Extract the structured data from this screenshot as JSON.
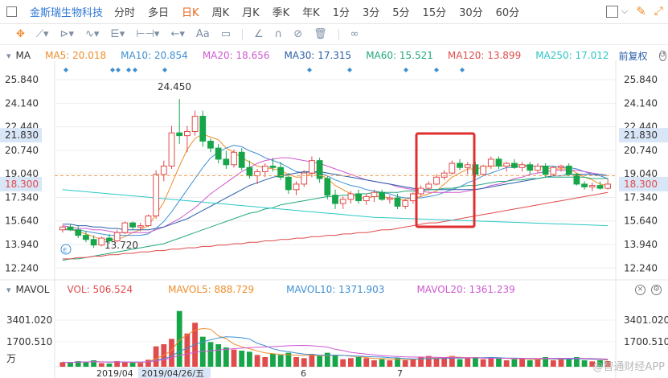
{
  "header": {
    "stock_name": "金斯瑞生物科技",
    "periods": [
      "分时",
      "多日",
      "日K",
      "周K",
      "月K",
      "季K",
      "年K",
      "1分",
      "3分",
      "5分",
      "15分",
      "30分",
      "60分"
    ],
    "active_period": "日K"
  },
  "toolbar": {
    "tools": [
      "crosshair-icon",
      "trendline-icon",
      "channel-icon",
      "wave-icon",
      "fibonacci-icon",
      "range-icon",
      "arrow-icon",
      "text-tool-label",
      "note-icon",
      "pen-icon",
      "arc-icon",
      "forbid-icon",
      "trash-icon",
      "link-icon"
    ],
    "text_tool_label": "Aa"
  },
  "ma_legend": {
    "name": "MA",
    "items": [
      {
        "label": "MA5: 20.018",
        "color": "#f08c2b"
      },
      {
        "label": "MA10: 20.854",
        "color": "#3f8fd2"
      },
      {
        "label": "MA20: 18.656",
        "color": "#cf59d1"
      },
      {
        "label": "MA30: 17.315",
        "color": "#2a5fa8"
      },
      {
        "label": "MA60: 15.521",
        "color": "#23a87b"
      },
      {
        "label": "MA120: 13.899",
        "color": "#e04b4b"
      },
      {
        "label": "MA250: 17.012",
        "color": "#2cc7c7"
      }
    ],
    "adjust_label": "前复权"
  },
  "vol_legend": {
    "name": "MAVOL",
    "items": [
      {
        "label": "VOL: 506.524",
        "color": "#e04b4b"
      },
      {
        "label": "MAVOL5: 888.729",
        "color": "#f08c2b"
      },
      {
        "label": "MAVOL10: 1371.903",
        "color": "#3f8fd2"
      },
      {
        "label": "MAVOL20: 1361.239",
        "color": "#cf59d1"
      }
    ]
  },
  "price_axis": [
    "25.840",
    "24.140",
    "22.440",
    "21.830",
    "20.740",
    "19.040",
    "18.300",
    "17.340",
    "15.640",
    "13.940",
    "12.240"
  ],
  "vol_axis": [
    "3401.020",
    "1700.510",
    "万"
  ],
  "date_axis": [
    "2019/04",
    "2019/04/26/五",
    "6",
    "7"
  ],
  "annotations": {
    "high_label": "24.450",
    "low_label": "13.720"
  },
  "current_price": "18.300",
  "highlight_price": "21.830",
  "watermark": "@智通财经APP",
  "chart_data": {
    "type": "candlestick",
    "ylim": [
      11.5,
      26.6
    ],
    "candles": [
      [
        15.0,
        15.3,
        14.8,
        15.2
      ],
      [
        15.2,
        15.4,
        14.9,
        15.0
      ],
      [
        15.0,
        15.3,
        14.4,
        14.6
      ],
      [
        14.6,
        14.9,
        14.1,
        14.3
      ],
      [
        14.3,
        14.6,
        13.7,
        13.9
      ],
      [
        13.9,
        14.5,
        13.8,
        14.4
      ],
      [
        14.4,
        14.7,
        14.0,
        14.2
      ],
      [
        14.2,
        15.0,
        14.1,
        14.8
      ],
      [
        14.8,
        15.6,
        14.7,
        15.5
      ],
      [
        15.5,
        15.6,
        15.0,
        15.2
      ],
      [
        15.2,
        15.5,
        14.9,
        15.3
      ],
      [
        15.3,
        16.1,
        15.2,
        16.0
      ],
      [
        16.0,
        19.3,
        15.8,
        19.0
      ],
      [
        19.0,
        20.0,
        18.5,
        19.6
      ],
      [
        19.6,
        22.5,
        19.4,
        22.0
      ],
      [
        22.0,
        24.45,
        21.2,
        21.8
      ],
      [
        21.8,
        22.5,
        20.6,
        22.1
      ],
      [
        22.1,
        23.6,
        21.8,
        23.2
      ],
      [
        23.2,
        23.6,
        21.0,
        21.4
      ],
      [
        21.4,
        21.6,
        20.6,
        20.9
      ],
      [
        20.9,
        21.2,
        19.8,
        20.1
      ],
      [
        20.1,
        20.7,
        19.4,
        19.7
      ],
      [
        19.7,
        20.8,
        19.5,
        20.6
      ],
      [
        20.6,
        20.9,
        19.3,
        19.5
      ],
      [
        19.5,
        20.0,
        18.7,
        18.9
      ],
      [
        18.9,
        19.4,
        18.3,
        19.2
      ],
      [
        19.2,
        19.8,
        18.8,
        19.6
      ],
      [
        19.6,
        20.2,
        19.2,
        19.5
      ],
      [
        19.5,
        19.9,
        18.6,
        18.8
      ],
      [
        18.8,
        19.1,
        17.6,
        17.9
      ],
      [
        17.9,
        18.5,
        17.5,
        18.3
      ],
      [
        18.3,
        19.3,
        18.1,
        19.1
      ],
      [
        19.1,
        20.3,
        18.8,
        20.0
      ],
      [
        20.0,
        20.2,
        18.4,
        18.7
      ],
      [
        18.7,
        18.9,
        17.2,
        17.5
      ],
      [
        17.5,
        17.9,
        16.5,
        16.9
      ],
      [
        16.9,
        17.4,
        16.5,
        17.2
      ],
      [
        17.2,
        17.8,
        16.9,
        17.6
      ],
      [
        17.6,
        17.9,
        16.9,
        17.1
      ],
      [
        17.1,
        17.6,
        16.8,
        17.4
      ],
      [
        17.4,
        17.9,
        17.0,
        17.7
      ],
      [
        17.7,
        17.9,
        17.1,
        17.2
      ],
      [
        17.2,
        17.5,
        16.9,
        17.3
      ],
      [
        17.3,
        17.6,
        16.5,
        16.7
      ],
      [
        16.7,
        17.2,
        16.5,
        17.1
      ],
      [
        17.1,
        17.7,
        16.9,
        17.6
      ],
      [
        17.6,
        18.2,
        17.4,
        18.0
      ],
      [
        18.0,
        18.5,
        17.8,
        18.3
      ],
      [
        18.3,
        19.0,
        18.2,
        18.8
      ],
      [
        18.8,
        19.3,
        18.6,
        19.1
      ],
      [
        19.1,
        20.0,
        19.0,
        19.8
      ],
      [
        19.8,
        20.1,
        19.3,
        19.5
      ],
      [
        19.5,
        19.9,
        19.0,
        19.7
      ],
      [
        19.7,
        19.9,
        18.8,
        19.0
      ],
      [
        19.0,
        19.7,
        18.9,
        19.6
      ],
      [
        19.6,
        20.3,
        19.4,
        20.1
      ],
      [
        20.1,
        20.3,
        19.4,
        19.6
      ],
      [
        19.6,
        19.9,
        19.2,
        19.8
      ],
      [
        19.8,
        20.1,
        19.4,
        19.5
      ],
      [
        19.5,
        19.9,
        19.2,
        19.7
      ],
      [
        19.7,
        19.9,
        19.0,
        19.3
      ],
      [
        19.3,
        19.8,
        19.1,
        19.6
      ],
      [
        19.6,
        19.8,
        18.8,
        19.0
      ],
      [
        19.0,
        19.6,
        18.9,
        19.5
      ],
      [
        19.5,
        19.7,
        19.2,
        19.6
      ],
      [
        19.6,
        19.8,
        18.9,
        19.0
      ],
      [
        19.0,
        19.1,
        18.2,
        18.3
      ],
      [
        18.3,
        18.5,
        17.9,
        18.1
      ],
      [
        18.1,
        18.4,
        17.8,
        18.2
      ],
      [
        18.2,
        18.5,
        17.9,
        18.0
      ],
      [
        18.0,
        18.7,
        17.9,
        18.3
      ]
    ],
    "ma_series": [
      {
        "name": "MA5",
        "color": "#f08c2b",
        "values": [
          15.1,
          15.0,
          14.9,
          14.7,
          14.5,
          14.3,
          14.3,
          14.3,
          14.5,
          14.8,
          15.0,
          15.3,
          16.1,
          17.0,
          18.3,
          19.6,
          20.8,
          21.6,
          21.9,
          21.7,
          21.5,
          20.9,
          20.6,
          20.2,
          19.9,
          19.6,
          19.5,
          19.4,
          19.3,
          19.0,
          18.8,
          18.8,
          19.1,
          19.0,
          18.7,
          18.2,
          17.9,
          17.6,
          17.3,
          17.3,
          17.4,
          17.4,
          17.3,
          17.2,
          17.2,
          17.3,
          17.4,
          17.6,
          17.8,
          18.3,
          18.8,
          19.1,
          19.4,
          19.4,
          19.5,
          19.6,
          19.6,
          19.6,
          19.7,
          19.7,
          19.6,
          19.6,
          19.5,
          19.4,
          19.4,
          19.4,
          19.1,
          18.8,
          18.6,
          18.3,
          18.2
        ]
      },
      {
        "name": "MA10",
        "color": "#3f8fd2",
        "values": [
          15.0,
          15.0,
          15.0,
          14.9,
          14.8,
          14.7,
          14.6,
          14.6,
          14.6,
          14.6,
          14.6,
          14.7,
          15.1,
          15.6,
          16.3,
          17.1,
          17.9,
          18.7,
          19.5,
          20.2,
          20.6,
          20.9,
          21.1,
          21.0,
          20.7,
          20.5,
          20.2,
          20.0,
          19.8,
          19.5,
          19.2,
          19.1,
          19.2,
          19.1,
          18.9,
          18.6,
          18.4,
          18.2,
          18.1,
          17.9,
          17.8,
          17.7,
          17.6,
          17.4,
          17.3,
          17.3,
          17.3,
          17.4,
          17.5,
          17.7,
          17.9,
          18.1,
          18.4,
          18.6,
          18.9,
          19.1,
          19.3,
          19.5,
          19.5,
          19.6,
          19.6,
          19.6,
          19.6,
          19.6,
          19.5,
          19.5,
          19.4,
          19.2,
          19.0,
          18.9,
          18.7
        ]
      },
      {
        "name": "MA20",
        "color": "#cf59d1",
        "values": [
          15.3,
          15.2,
          15.1,
          15.1,
          15.0,
          15.0,
          14.9,
          14.8,
          14.8,
          14.8,
          14.8,
          14.8,
          15.0,
          15.2,
          15.5,
          15.8,
          16.2,
          16.6,
          17.1,
          17.6,
          18.0,
          18.4,
          18.8,
          19.2,
          19.5,
          19.8,
          20.0,
          20.1,
          20.2,
          20.2,
          20.1,
          20.0,
          19.9,
          19.8,
          19.6,
          19.4,
          19.2,
          19.0,
          18.8,
          18.6,
          18.5,
          18.4,
          18.3,
          18.1,
          18.0,
          17.9,
          17.8,
          17.7,
          17.7,
          17.7,
          17.7,
          17.7,
          17.8,
          17.9,
          18.0,
          18.2,
          18.3,
          18.5,
          18.7,
          18.8,
          19.0,
          19.1,
          19.2,
          19.3,
          19.3,
          19.3,
          19.3,
          19.2,
          19.1,
          19.0,
          18.9
        ]
      },
      {
        "name": "MA30",
        "color": "#2a5fa8",
        "values": [
          15.4,
          15.4,
          15.3,
          15.3,
          15.2,
          15.2,
          15.1,
          15.1,
          15.0,
          15.0,
          15.0,
          15.0,
          15.1,
          15.2,
          15.4,
          15.6,
          15.8,
          16.1,
          16.4,
          16.7,
          17.0,
          17.3,
          17.6,
          17.9,
          18.2,
          18.4,
          18.6,
          18.8,
          18.9,
          19.0,
          19.1,
          19.2,
          19.2,
          19.2,
          19.1,
          19.0,
          18.9,
          18.8,
          18.7,
          18.6,
          18.5,
          18.4,
          18.3,
          18.2,
          18.1,
          18.0,
          17.9,
          17.9,
          17.9,
          17.9,
          17.9,
          17.9,
          17.9,
          17.9,
          18.0,
          18.1,
          18.2,
          18.3,
          18.4,
          18.5,
          18.6,
          18.7,
          18.8,
          18.9,
          18.9,
          19.0,
          19.0,
          19.0,
          19.0,
          19.0,
          18.9
        ]
      },
      {
        "name": "MA60",
        "color": "#23a87b",
        "values": [
          12.8,
          12.9,
          12.9,
          13.0,
          13.1,
          13.2,
          13.3,
          13.4,
          13.5,
          13.6,
          13.7,
          13.8,
          13.9,
          14.0,
          14.2,
          14.4,
          14.6,
          14.8,
          15.0,
          15.2,
          15.4,
          15.6,
          15.8,
          16.0,
          16.2,
          16.3,
          16.5,
          16.6,
          16.8,
          16.9,
          17.0,
          17.1,
          17.2,
          17.3,
          17.4,
          17.4,
          17.5,
          17.5,
          17.6,
          17.6,
          17.7,
          17.7,
          17.7,
          17.7,
          17.8,
          17.8,
          17.8,
          17.9,
          17.9,
          18.0,
          18.0,
          18.1,
          18.2,
          18.2,
          18.3,
          18.4,
          18.5,
          18.5,
          18.6,
          18.6,
          18.7,
          18.7,
          18.8,
          18.8,
          18.8,
          18.8,
          18.8,
          18.8,
          18.7,
          18.7,
          18.7
        ]
      },
      {
        "name": "MA120",
        "color": "#e04b4b",
        "values": [
          12.9,
          12.9,
          13.0,
          13.0,
          13.1,
          13.1,
          13.2,
          13.2,
          13.3,
          13.3,
          13.4,
          13.4,
          13.5,
          13.5,
          13.6,
          13.6,
          13.7,
          13.7,
          13.8,
          13.8,
          13.9,
          13.9,
          14.0,
          14.0,
          14.1,
          14.1,
          14.2,
          14.2,
          14.3,
          14.3,
          14.4,
          14.4,
          14.5,
          14.5,
          14.6,
          14.6,
          14.7,
          14.7,
          14.8,
          14.8,
          14.9,
          15.0,
          15.0,
          15.1,
          15.2,
          15.3,
          15.4,
          15.5,
          15.5,
          15.6,
          15.7,
          15.8,
          15.9,
          16.0,
          16.1,
          16.2,
          16.3,
          16.4,
          16.5,
          16.6,
          16.7,
          16.8,
          16.9,
          17.0,
          17.1,
          17.2,
          17.3,
          17.4,
          17.5,
          17.6,
          17.7
        ]
      },
      {
        "name": "MA250",
        "color": "#2cc7c7",
        "values": [
          17.9,
          17.85,
          17.8,
          17.75,
          17.7,
          17.65,
          17.6,
          17.55,
          17.5,
          17.45,
          17.4,
          17.35,
          17.3,
          17.25,
          17.2,
          17.15,
          17.1,
          17.05,
          17.0,
          16.95,
          16.9,
          16.85,
          16.8,
          16.75,
          16.7,
          16.65,
          16.6,
          16.55,
          16.5,
          16.45,
          16.4,
          16.35,
          16.3,
          16.25,
          16.2,
          16.15,
          16.1,
          16.05,
          16.0,
          15.95,
          15.9,
          15.88,
          15.86,
          15.84,
          15.82,
          15.8,
          15.78,
          15.76,
          15.74,
          15.72,
          15.7,
          15.68,
          15.66,
          15.64,
          15.62,
          15.6,
          15.58,
          15.56,
          15.54,
          15.52,
          15.5,
          15.48,
          15.46,
          15.44,
          15.42,
          15.4,
          15.38,
          15.36,
          15.34,
          15.32,
          15.3
        ]
      }
    ],
    "volumes": [
      420,
      380,
      520,
      460,
      600,
      340,
      300,
      520,
      460,
      380,
      360,
      650,
      1900,
      2100,
      2600,
      5200,
      3100,
      4100,
      2800,
      2300,
      2100,
      1800,
      1600,
      1500,
      1400,
      1100,
      900,
      1200,
      1100,
      1300,
      900,
      800,
      1200,
      1000,
      1300,
      1100,
      700,
      800,
      900,
      800,
      600,
      700,
      600,
      800,
      600,
      700,
      900,
      1000,
      800,
      900,
      1000,
      700,
      800,
      900,
      700,
      900,
      800,
      600,
      700,
      800,
      600,
      700,
      900,
      600,
      700,
      800,
      900,
      600,
      500,
      600,
      520
    ],
    "vol_ylim": [
      0,
      6000
    ]
  }
}
